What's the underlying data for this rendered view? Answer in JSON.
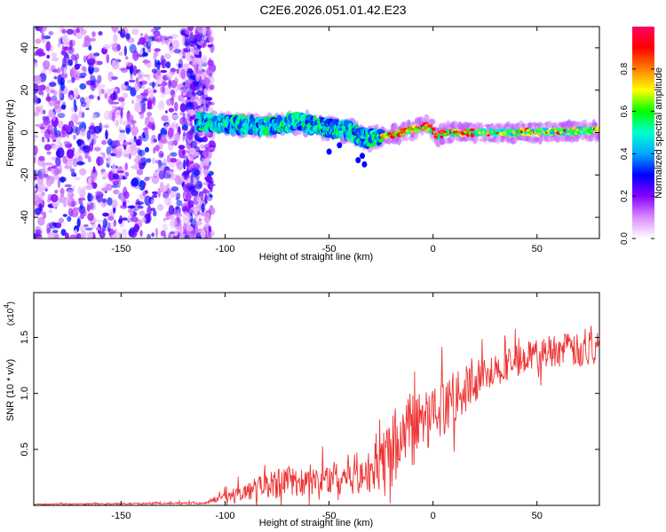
{
  "title": "C2E6.2026.051.01.42.E23",
  "chart_data": [
    {
      "id": "spectrogram",
      "type": "heatmap",
      "xlabel": "Height of straight line (km)",
      "ylabel": "Frequency (Hz)",
      "xlim": [
        -192,
        80
      ],
      "ylim": [
        -50,
        50
      ],
      "xticks": [
        -150,
        -100,
        -50,
        0,
        50
      ],
      "xtick_labels": [
        "-150",
        "-100",
        "-50",
        "0",
        "50"
      ],
      "yticks": [
        -40,
        -20,
        0,
        20,
        40
      ],
      "ytick_labels": [
        "-40",
        "-20",
        "0",
        "20",
        "40"
      ],
      "colorbar": {
        "label": "Normalized spectral amplitude",
        "range": [
          0,
          1
        ],
        "ticks": [
          0.0,
          0.2,
          0.4,
          0.6,
          0.8
        ],
        "tick_labels": [
          "0.0",
          "0.2",
          "0.4",
          "0.6",
          "0.8"
        ],
        "colors": [
          "#ffffff",
          "#d98cff",
          "#8800ff",
          "#0000ff",
          "#00a8ff",
          "#00ffd0",
          "#00ff00",
          "#ffff00",
          "#ff8000",
          "#ff0000",
          "#ff0060"
        ]
      },
      "ridge": {
        "x": [
          -113,
          -100,
          -80,
          -65,
          -50,
          -40,
          -33,
          -25,
          -15,
          -8,
          -3,
          0,
          2,
          5,
          10,
          20,
          40,
          60,
          80
        ],
        "y": [
          5,
          4,
          3,
          5,
          2,
          1,
          -3,
          -2,
          0,
          2,
          3,
          1,
          -2,
          0,
          0,
          0,
          0,
          0.5,
          1
        ]
      },
      "noise_region": {
        "x_from": -192,
        "x_to": -112
      },
      "color_scheme": {
        "noise": "#8800ff"
      }
    },
    {
      "id": "snr",
      "type": "line",
      "xlabel": "Height of straight line (km)",
      "ylabel": "SNR (10 * v/v)",
      "scale_label": "(x10",
      "scale_exp": "4",
      "xlim": [
        -192,
        80
      ],
      "ylim": [
        0,
        1.9
      ],
      "xticks": [
        -150,
        -100,
        -50,
        0,
        50
      ],
      "xtick_labels": [
        "-150",
        "-100",
        "-50",
        "0",
        "50"
      ],
      "yticks": [
        0.5,
        1.0,
        1.5
      ],
      "ytick_labels": [
        "0.5",
        "1.0",
        "1.5"
      ],
      "series": [
        {
          "name": "SNR",
          "color": "#ee3333",
          "x": [
            -192,
            -110,
            -100,
            -90,
            -80,
            -70,
            -60,
            -50,
            -40,
            -30,
            -25,
            -20,
            -10,
            0,
            10,
            20,
            30,
            40,
            50,
            60,
            70,
            80
          ],
          "y": [
            0.01,
            0.02,
            0.08,
            0.12,
            0.18,
            0.22,
            0.2,
            0.24,
            0.28,
            0.3,
            0.4,
            0.55,
            0.75,
            0.8,
            0.95,
            1.1,
            1.2,
            1.3,
            1.35,
            1.4,
            1.38,
            1.4
          ],
          "noise_amplitude": [
            0.005,
            0.01,
            0.04,
            0.08,
            0.12,
            0.14,
            0.12,
            0.15,
            0.18,
            0.2,
            0.25,
            0.3,
            0.3,
            0.25,
            0.22,
            0.2,
            0.15,
            0.14,
            0.14,
            0.15,
            0.15,
            0.15
          ]
        }
      ]
    }
  ]
}
